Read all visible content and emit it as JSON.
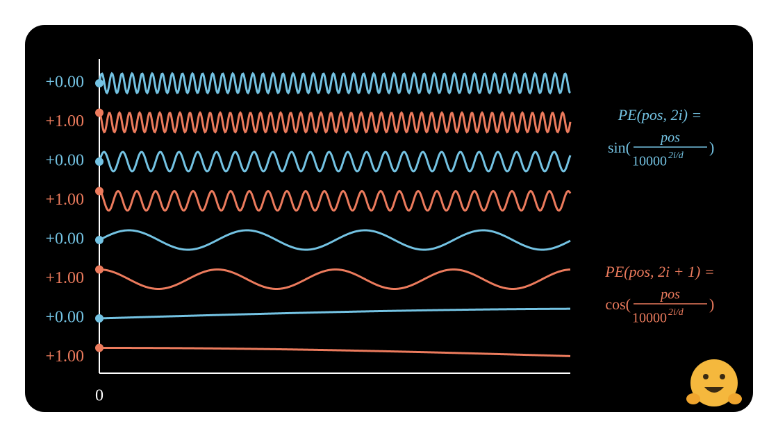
{
  "rows": [
    {
      "label": "+0.00",
      "kind": "sin",
      "color": "#74c3e3"
    },
    {
      "label": "+1.00",
      "kind": "cos",
      "color": "#ec7b5d"
    },
    {
      "label": "+0.00",
      "kind": "sin",
      "color": "#74c3e3"
    },
    {
      "label": "+1.00",
      "kind": "cos",
      "color": "#ec7b5d"
    },
    {
      "label": "+0.00",
      "kind": "sin",
      "color": "#74c3e3"
    },
    {
      "label": "+1.00",
      "kind": "cos",
      "color": "#ec7b5d"
    },
    {
      "label": "+0.00",
      "kind": "sin",
      "color": "#74c3e3"
    },
    {
      "label": "+1.00",
      "kind": "cos",
      "color": "#ec7b5d"
    }
  ],
  "axis_label": "0",
  "formulas": {
    "sin": {
      "lhs": "PE(pos, 2i) =",
      "func": "sin(",
      "numerator": "pos",
      "base": "10000",
      "exponent": "2i/d",
      "close": ")",
      "color": "#74c3e3"
    },
    "cos": {
      "lhs": "PE(pos, 2i + 1) =",
      "func": "cos(",
      "numerator": "pos",
      "base": "10000",
      "exponent": "2i/d",
      "close": ")",
      "color": "#ec7b5d"
    }
  }
}
